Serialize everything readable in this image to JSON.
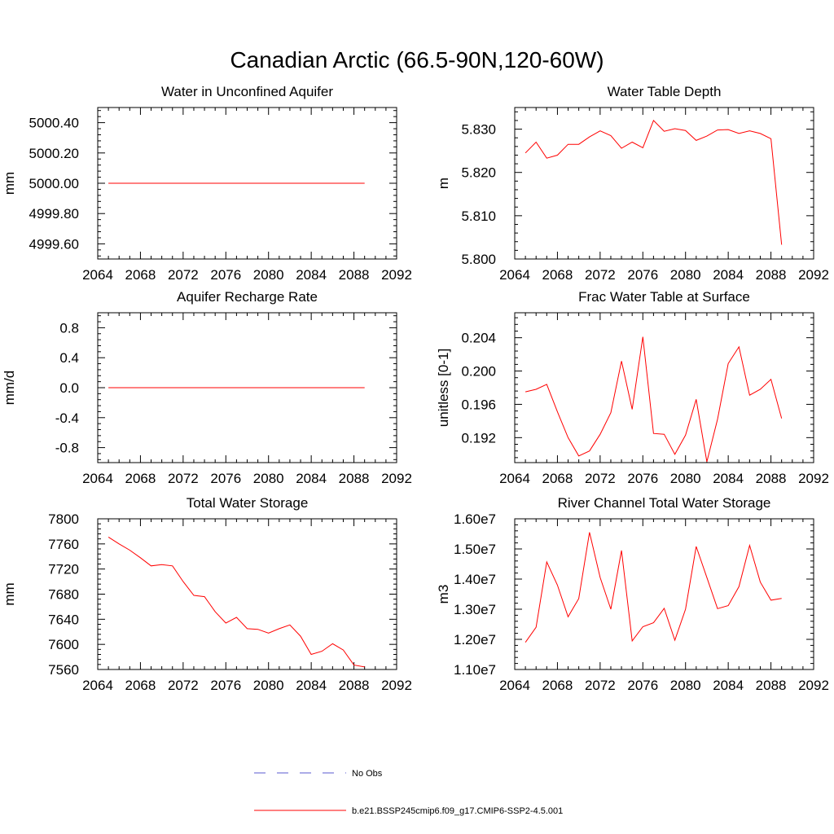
{
  "figure": {
    "title": "Canadian Arctic (66.5-90N,120-60W)"
  },
  "legend": {
    "items": [
      {
        "label": "No Obs",
        "color": "#5a5ad2",
        "style": "dashed"
      },
      {
        "label": "b.e21.BSSP245cmip6.f09_g17.CMIP6-SSP2-4.5.001",
        "color": "#ff0000",
        "style": "solid"
      }
    ]
  },
  "colors": {
    "model": "#ff0000",
    "obs": "#5a5ad2",
    "axis": "#000000"
  },
  "chart_data": [
    {
      "type": "line",
      "title": "Water in Unconfined Aquifer",
      "ylabel": "mm",
      "xlim": [
        2064,
        2092
      ],
      "ylim": [
        4999.5,
        5000.5
      ],
      "xticks": [
        2064,
        2068,
        2072,
        2076,
        2080,
        2084,
        2088,
        2092
      ],
      "yticks": [
        4999.6,
        4999.8,
        5000.0,
        5000.2,
        5000.4
      ],
      "ytick_labels": [
        "4999.60",
        "4999.80",
        "5000.00",
        "5000.20",
        "5000.40"
      ],
      "series": [
        {
          "name": "b.e21.BSSP245cmip6.f09_g17.CMIP6-SSP2-4.5.001",
          "x_start": 2065,
          "values": [
            5000,
            5000,
            5000,
            5000,
            5000,
            5000,
            5000,
            5000,
            5000,
            5000,
            5000,
            5000,
            5000,
            5000,
            5000,
            5000,
            5000,
            5000,
            5000,
            5000,
            5000,
            5000,
            5000,
            5000,
            5000
          ]
        }
      ]
    },
    {
      "type": "line",
      "title": "Water Table Depth",
      "ylabel": "m",
      "xlim": [
        2064,
        2092
      ],
      "ylim": [
        5.8,
        5.835
      ],
      "xticks": [
        2064,
        2068,
        2072,
        2076,
        2080,
        2084,
        2088,
        2092
      ],
      "yticks": [
        5.8,
        5.81,
        5.82,
        5.83
      ],
      "ytick_labels": [
        "5.800",
        "5.810",
        "5.820",
        "5.830"
      ],
      "series": [
        {
          "name": "b.e21.BSSP245cmip6.f09_g17.CMIP6-SSP2-4.5.001",
          "x_start": 2065,
          "values": [
            5.8245,
            5.827,
            5.8233,
            5.824,
            5.8265,
            5.8265,
            5.8282,
            5.8296,
            5.8285,
            5.8256,
            5.827,
            5.8257,
            5.832,
            5.8295,
            5.8301,
            5.8297,
            5.8274,
            5.8284,
            5.8298,
            5.8299,
            5.829,
            5.8296,
            5.829,
            5.8278,
            5.8033
          ]
        }
      ]
    },
    {
      "type": "line",
      "title": "Aquifer Recharge Rate",
      "ylabel": "mm/d",
      "xlim": [
        2064,
        2092
      ],
      "ylim": [
        -1.0,
        1.0
      ],
      "xticks": [
        2064,
        2068,
        2072,
        2076,
        2080,
        2084,
        2088,
        2092
      ],
      "yticks": [
        -0.8,
        -0.4,
        0.0,
        0.4,
        0.8
      ],
      "ytick_labels": [
        "-0.8",
        "-0.4",
        "0.0",
        "0.4",
        "0.8"
      ],
      "series": [
        {
          "name": "b.e21.BSSP245cmip6.f09_g17.CMIP6-SSP2-4.5.001",
          "x_start": 2065,
          "values": [
            0,
            0,
            0,
            0,
            0,
            0,
            0,
            0,
            0,
            0,
            0,
            0,
            0,
            0,
            0,
            0,
            0,
            0,
            0,
            0,
            0,
            0,
            0,
            0,
            0
          ]
        }
      ]
    },
    {
      "type": "line",
      "title": "Frac Water Table at Surface",
      "ylabel": "unitless [0-1]",
      "xlim": [
        2064,
        2092
      ],
      "ylim": [
        0.189,
        0.207
      ],
      "xticks": [
        2064,
        2068,
        2072,
        2076,
        2080,
        2084,
        2088,
        2092
      ],
      "yticks": [
        0.192,
        0.196,
        0.2,
        0.204
      ],
      "ytick_labels": [
        "0.192",
        "0.196",
        "0.200",
        "0.204"
      ],
      "series": [
        {
          "name": "b.e21.BSSP245cmip6.f09_g17.CMIP6-SSP2-4.5.001",
          "x_start": 2065,
          "values": [
            0.1975,
            0.1978,
            0.1984,
            0.1951,
            0.192,
            0.1898,
            0.1904,
            0.1924,
            0.195,
            0.2012,
            0.1954,
            0.2041,
            0.1925,
            0.1924,
            0.19,
            0.1923,
            0.1966,
            0.1891,
            0.1942,
            0.2009,
            0.2029,
            0.1971,
            0.1978,
            0.199,
            0.1943
          ]
        }
      ]
    },
    {
      "type": "line",
      "title": "Total Water Storage",
      "ylabel": "mm",
      "xlim": [
        2064,
        2092
      ],
      "ylim": [
        7560,
        7800
      ],
      "xticks": [
        2064,
        2068,
        2072,
        2076,
        2080,
        2084,
        2088,
        2092
      ],
      "yticks": [
        7560,
        7600,
        7640,
        7680,
        7720,
        7760,
        7800
      ],
      "ytick_labels": [
        "7560",
        "7600",
        "7640",
        "7680",
        "7720",
        "7760",
        "7800"
      ],
      "series": [
        {
          "name": "b.e21.BSSP245cmip6.f09_g17.CMIP6-SSP2-4.5.001",
          "x_start": 2065,
          "values": [
            7771,
            7760,
            7750,
            7738,
            7725,
            7727,
            7725,
            7700,
            7678,
            7676,
            7652,
            7634,
            7643,
            7625,
            7624,
            7618,
            7625,
            7631,
            7613,
            7584,
            7589,
            7601,
            7591,
            7567,
            7564
          ]
        }
      ]
    },
    {
      "type": "line",
      "title": "River Channel Total Water Storage",
      "ylabel": "m3",
      "xlim": [
        2064,
        2092
      ],
      "ylim": [
        11000000,
        16000000
      ],
      "xticks": [
        2064,
        2068,
        2072,
        2076,
        2080,
        2084,
        2088,
        2092
      ],
      "yticks": [
        11000000,
        12000000,
        13000000,
        14000000,
        15000000,
        16000000
      ],
      "ytick_labels": [
        "1.10e7",
        "1.20e7",
        "1.30e7",
        "1.40e7",
        "1.50e7",
        "1.60e7"
      ],
      "series": [
        {
          "name": "b.e21.BSSP245cmip6.f09_g17.CMIP6-SSP2-4.5.001",
          "x_start": 2065,
          "values": [
            11900000,
            12400000,
            14570000,
            13800000,
            12750000,
            13350000,
            15550000,
            14050000,
            13000000,
            14950000,
            11950000,
            12420000,
            12550000,
            13030000,
            11970000,
            13000000,
            15080000,
            14050000,
            13020000,
            13120000,
            13750000,
            15120000,
            13900000,
            13300000,
            13360000
          ]
        }
      ]
    }
  ]
}
